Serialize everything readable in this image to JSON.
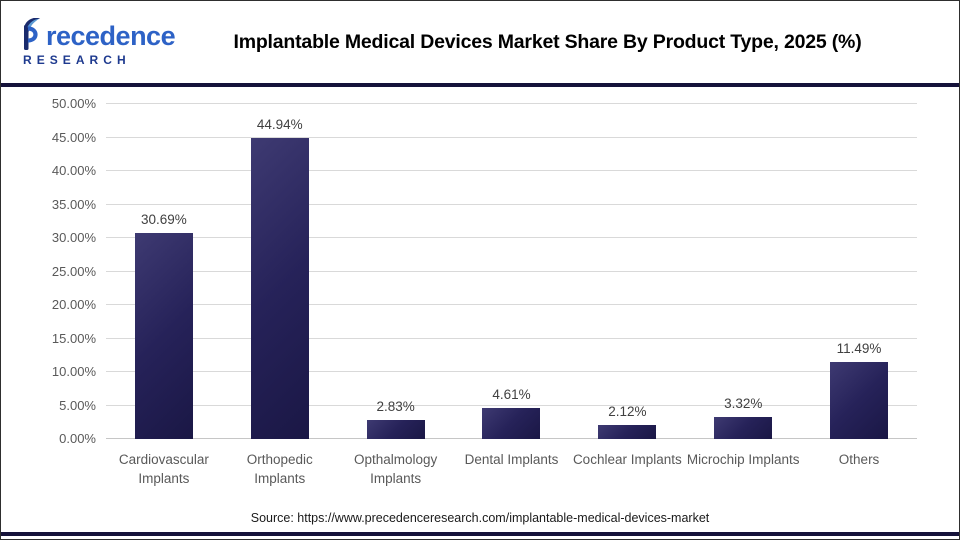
{
  "header": {
    "logo": {
      "name": "Precedence Research",
      "line1_rest": "recedence",
      "line2": "RESEARCH"
    },
    "title": "Implantable Medical Devices Market Share By Product Type, 2025 (%)"
  },
  "chart_data": {
    "type": "bar",
    "title": "Implantable Medical Devices Market Share By Product Type, 2025 (%)",
    "categories": [
      "Cardiovascular Implants",
      "Orthopedic Implants",
      "Opthalmology Implants",
      "Dental Implants",
      "Cochlear Implants",
      "Microchip Implants",
      "Others"
    ],
    "values": [
      30.69,
      44.94,
      2.83,
      4.61,
      2.12,
      3.32,
      11.49
    ],
    "value_labels": [
      "30.69%",
      "44.94%",
      "2.83%",
      "4.61%",
      "2.12%",
      "3.32%",
      "11.49%"
    ],
    "xlabel": "",
    "ylabel": "",
    "ylim": [
      0,
      50
    ],
    "ytick_step": 5,
    "ytick_labels": [
      "0.00%",
      "5.00%",
      "10.00%",
      "15.00%",
      "20.00%",
      "25.00%",
      "30.00%",
      "35.00%",
      "40.00%",
      "45.00%",
      "50.00%"
    ],
    "grid": true,
    "legend": false
  },
  "footer": {
    "source": "Source: https://www.precedenceresearch.com/implantable-medical-devices-market"
  },
  "colors": {
    "bar_gradient_top": "#3e3a72",
    "bar_gradient_bottom": "#1a1745",
    "gridline": "#d9d9d9",
    "axis_text": "#595959",
    "value_label_text": "#404040",
    "divider": "#15123a",
    "logo_blue": "#2d62c6",
    "logo_navy": "#1a2b6d",
    "title_text": "#000000"
  }
}
